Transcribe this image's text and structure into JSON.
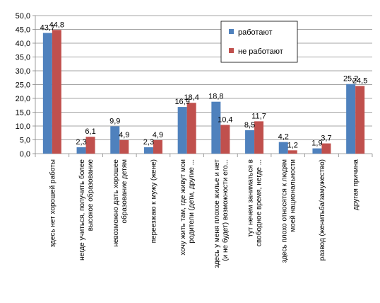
{
  "chart_data": {
    "type": "bar",
    "categories": [
      [
        "здесь нет хорошей работы"
      ],
      [
        "негде учиться, получить более",
        "высокое образование"
      ],
      [
        "невозможно дать хорошее",
        "образование детям"
      ],
      [
        "переезжаю к мужу (жене)"
      ],
      [
        "хочу жить там, где живут мои",
        "родители (дети, другие ..."
      ],
      [
        "здесь у меня плохое жилье и нет",
        "(и не будет) возможности его..."
      ],
      [
        "тут нечем заниматься в",
        "свободное время, негде ..."
      ],
      [
        "здесь плохо относятся к людям",
        "моей национальности"
      ],
      [
        "развод (женитьба/замужество)"
      ],
      [
        "другая причина"
      ]
    ],
    "series": [
      {
        "name": "работают",
        "color": "#4f81bd",
        "values": [
          43.7,
          2.3,
          9.9,
          2.3,
          16.9,
          18.8,
          8.5,
          4.2,
          1.9,
          25.2
        ]
      },
      {
        "name": "не работают",
        "color": "#c0504d",
        "values": [
          44.8,
          6.1,
          4.9,
          4.9,
          18.4,
          10.4,
          11.7,
          1.2,
          3.7,
          24.5
        ]
      }
    ],
    "data_labels": [
      [
        "43,7",
        "2,3",
        "9,9",
        "2,3",
        "16,9",
        "18,8",
        "8,5",
        "4,2",
        "1,9",
        "25,2"
      ],
      [
        "44,8",
        "6,1",
        "4,9",
        "4,9",
        "18,4",
        "10,4",
        "11,7",
        "1,2",
        "3,7",
        "24,5"
      ]
    ],
    "ylim": [
      0,
      50
    ],
    "yticks": [
      "0,0",
      "5,0",
      "10,0",
      "15,0",
      "20,0",
      "25,0",
      "30,0",
      "35,0",
      "40,0",
      "45,0",
      "50,0"
    ],
    "grid": "horizontal",
    "legend_position": "top-right"
  }
}
